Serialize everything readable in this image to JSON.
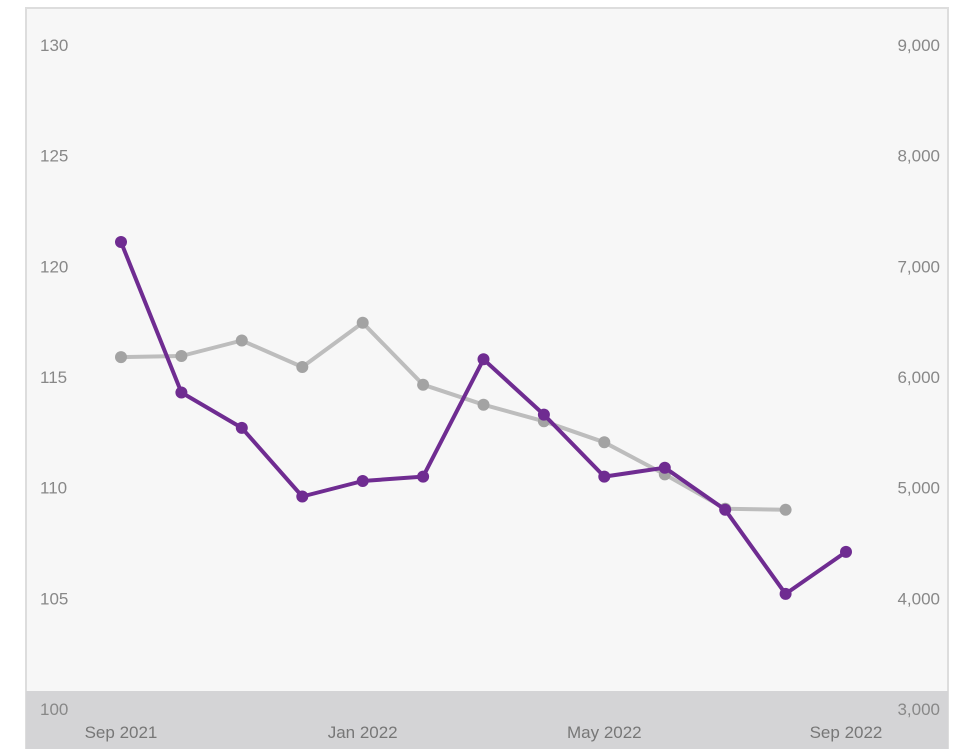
{
  "chart_data": {
    "type": "line",
    "x": [
      "2021-09",
      "2021-10",
      "2021-11",
      "2021-12",
      "2022-01",
      "2022-02",
      "2022-03",
      "2022-04",
      "2022-05",
      "2022-06",
      "2022-07",
      "2022-08",
      "2022-09"
    ],
    "x_tick_labels": [
      "Sep 2021",
      "Jan 2022",
      "May 2022",
      "Sep 2022"
    ],
    "y_left": {
      "ticks": [
        "100",
        "105",
        "110",
        "115",
        "120",
        "125",
        "130"
      ],
      "range": [
        100,
        130
      ]
    },
    "y_right": {
      "ticks": [
        "3,000",
        "4,000",
        "5,000",
        "6,000",
        "7,000",
        "8,000",
        "9,000"
      ],
      "range": [
        3000,
        9000
      ]
    },
    "series": [
      {
        "axis": "left",
        "color": "#6f2c91",
        "values": [
          121.1,
          114.3,
          112.7,
          109.6,
          110.3,
          110.5,
          115.8,
          113.3,
          110.5,
          110.9,
          109.0,
          105.2,
          107.1
        ]
      },
      {
        "axis": "right",
        "color": "#bdbdbd",
        "marker_color": "#a3a3a3",
        "values": [
          6180,
          6190,
          6330,
          6090,
          6490,
          5930,
          5750,
          5600,
          5410,
          5120,
          4810,
          4800,
          null
        ]
      }
    ],
    "grid": false,
    "legend": "none"
  },
  "colors": {
    "plot_background": "#f7f7f7",
    "axis_band": "#d4d4d6",
    "frame": "#dddddd",
    "tick_text": "#888888",
    "x_tick_text": "#777777"
  }
}
